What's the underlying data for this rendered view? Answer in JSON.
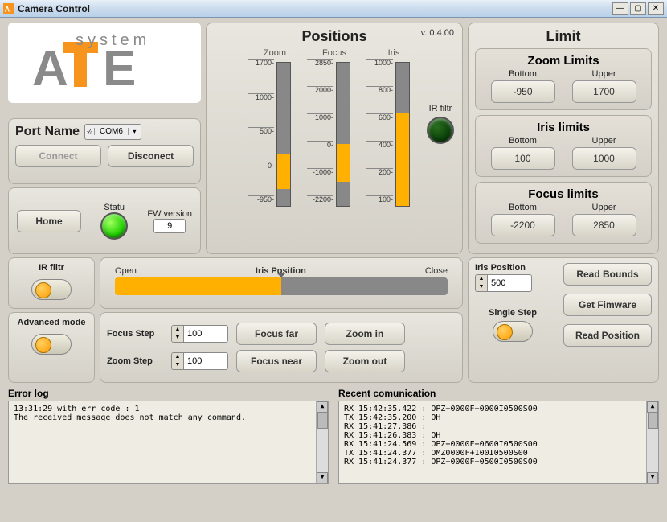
{
  "window": {
    "title": "Camera Control"
  },
  "logo": {
    "primary": "A",
    "accentT": "T",
    "trailing": "E",
    "tagline": "system",
    "orange": "#f7941d",
    "gray": "#8a8a8a"
  },
  "port": {
    "label": "Port Name",
    "value": "COM6",
    "connect": "Connect",
    "disconnect": "Disconect"
  },
  "status": {
    "home": "Home",
    "status_label": "Statu",
    "fw_label": "FW version",
    "fw_value": "9"
  },
  "positions": {
    "title": "Positions",
    "version": "v. 0.4.00",
    "irfiltr_label": "IR filtr",
    "gauges": [
      {
        "name": "Zoom",
        "ticks": [
          "1700",
          "1000",
          "500",
          "0",
          "-950"
        ],
        "zero_pct": 36,
        "fill_from": 0.64,
        "fill_to": 0.88
      },
      {
        "name": "Focus",
        "ticks": [
          "2850",
          "2000",
          "1000",
          "0",
          "-1000",
          "-2200"
        ],
        "zero_pct": 44,
        "fill_from": 0.565,
        "fill_to": 0.83
      },
      {
        "name": "Iris",
        "ticks": [
          "1000",
          "800",
          "600",
          "400",
          "200",
          "100"
        ],
        "zero_pct": 0,
        "fill_from": 0.35,
        "fill_to": 1.0
      }
    ]
  },
  "limits": {
    "title": "Limit",
    "groups": [
      {
        "title": "Zoom Limits",
        "bottom_label": "Bottom",
        "upper_label": "Upper",
        "bottom": "-950",
        "upper": "1700"
      },
      {
        "title": "Iris limits",
        "bottom_label": "Bottom",
        "upper_label": "Upper",
        "bottom": "100",
        "upper": "1000"
      },
      {
        "title": "Focus limits",
        "bottom_label": "Bottom",
        "upper_label": "Upper",
        "bottom": "-2200",
        "upper": "2850"
      }
    ]
  },
  "irfiltr_toggle_label": "IR filtr",
  "iris_slider": {
    "title": "Iris Position",
    "left": "Open",
    "right": "Close",
    "pct": 50
  },
  "advanced_label": "Advanced mode",
  "steps": {
    "focus_step_label": "Focus Step",
    "focus_step": "100",
    "zoom_step_label": "Zoom Step",
    "zoom_step": "100",
    "focus_far": "Focus far",
    "focus_near": "Focus near",
    "zoom_in": "Zoom in",
    "zoom_out": "Zoom out"
  },
  "right_controls": {
    "iris_pos_label": "Iris Position",
    "iris_pos": "500",
    "single_step_label": "Single Step",
    "read_bounds": "Read Bounds",
    "get_firmware": "Get Fimware",
    "read_position": "Read Position"
  },
  "error_log": {
    "title": "Error log",
    "lines": [
      "13:31:29   with err code :  1",
      "The received message does not match any command."
    ]
  },
  "recent": {
    "title": "Recent comunication",
    "lines": [
      "RX 15:42:35.422 : OPZ+0000F+0000I0500S00",
      "TX 15:42:35.200 : OH",
      "RX 15:41:27.386 :",
      "RX 15:41:26.383 : OH",
      "RX 15:41:24.569 : OPZ+0000F+0600I0500S00",
      "TX 15:41:24.377 : OMZ0000F+100I0500S00",
      "RX 15:41:24.377 : OPZ+0000F+0500I0500S00"
    ]
  },
  "colors": {
    "bar_fill": "#ffb000",
    "bar_bg": "#888888"
  }
}
